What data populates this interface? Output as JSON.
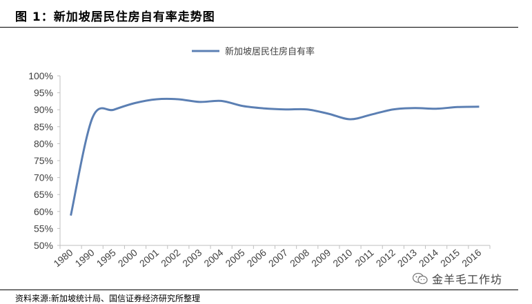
{
  "header": {
    "title": "图 1：新加坡居民住房自有率走势图"
  },
  "footer": {
    "source": "资料来源:新加坡统计局、国信证券经济研究所整理",
    "watermark": "金羊毛工作坊",
    "watermark_icon": "wechat-icon"
  },
  "colors": {
    "line": "#5b7fb3",
    "axis": "#bfbfbf",
    "text": "#404040"
  },
  "chart_data": {
    "type": "line",
    "title": "",
    "xlabel": "",
    "ylabel": "",
    "legend": "top-center",
    "grid": false,
    "categories": [
      "1980",
      "1990",
      "1995",
      "2000",
      "2001",
      "2002",
      "2003",
      "2004",
      "2005",
      "2006",
      "2007",
      "2008",
      "2009",
      "2010",
      "2011",
      "2012",
      "2013",
      "2014",
      "2015",
      "2016"
    ],
    "ylim": [
      50,
      100
    ],
    "yticks": [
      50,
      55,
      60,
      65,
      70,
      75,
      80,
      85,
      90,
      95,
      100
    ],
    "ytick_labels": [
      "50%",
      "55%",
      "60%",
      "65%",
      "70%",
      "75%",
      "80%",
      "85%",
      "90%",
      "95%",
      "100%"
    ],
    "series": [
      {
        "name": "新加坡居民住房自有率",
        "values": [
          58.8,
          87.5,
          90.0,
          92.0,
          93.1,
          93.1,
          92.3,
          92.6,
          91.1,
          90.4,
          90.1,
          90.1,
          88.8,
          87.2,
          88.6,
          90.1,
          90.5,
          90.3,
          90.8,
          90.9
        ]
      }
    ]
  }
}
